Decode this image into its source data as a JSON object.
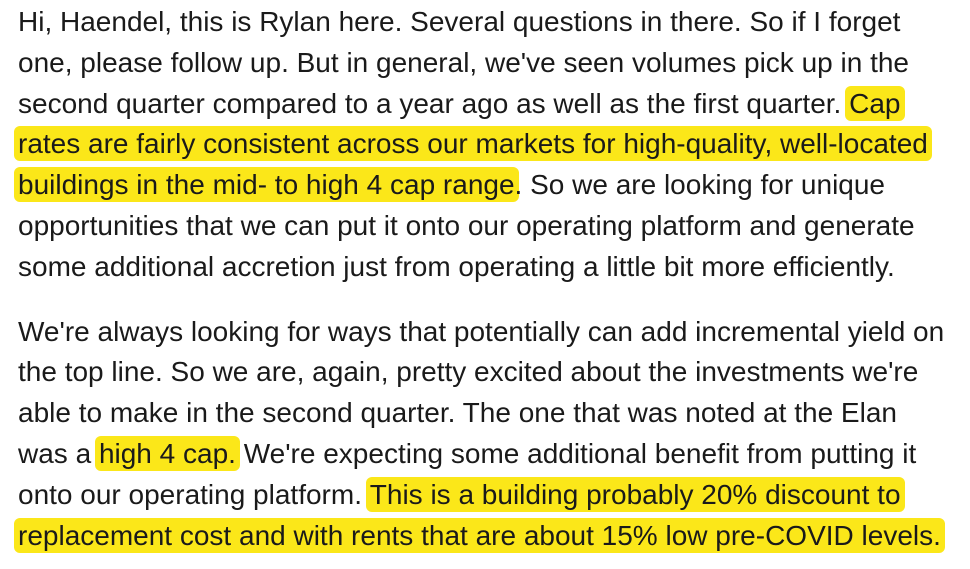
{
  "paragraphs": [
    {
      "lines": [
        [
          {
            "text": "Hi, Haendel, this is Rylan here. Several questions in there. So if I forget",
            "hl": false
          }
        ],
        [
          {
            "text": "one, please follow up. But in general, we've seen volumes pick up in the",
            "hl": false
          }
        ],
        [
          {
            "text": "second quarter compared to a year ago as well as the first quarter. ",
            "hl": false
          },
          {
            "text": "Cap",
            "hl": true
          }
        ],
        [
          {
            "text": "rates are fairly consistent across our markets for high-quality, well-located",
            "hl": true
          }
        ],
        [
          {
            "text": "buildings in the mid- to high 4 cap range",
            "hl": true
          },
          {
            "text": ". So we are looking for unique",
            "hl": false
          }
        ],
        [
          {
            "text": "opportunities that we can put it onto our operating platform and generate",
            "hl": false
          }
        ],
        [
          {
            "text": "some additional accretion just from operating a little bit more efficiently.",
            "hl": false
          }
        ]
      ]
    },
    {
      "lines": [
        [
          {
            "text": "We're always looking for ways that potentially can add incremental yield on",
            "hl": false
          }
        ],
        [
          {
            "text": "the top line. So we are, again, pretty excited about the investments we're",
            "hl": false
          }
        ],
        [
          {
            "text": "able to make in the second quarter. The one that was noted at the Elan",
            "hl": false
          }
        ],
        [
          {
            "text": "was a ",
            "hl": false
          },
          {
            "text": "high 4 cap.",
            "hl": true
          },
          {
            "text": " We're expecting some additional benefit from putting it",
            "hl": false
          }
        ],
        [
          {
            "text": "onto our operating platform. ",
            "hl": false
          },
          {
            "text": "This is a building probably 20% discount to",
            "hl": true
          }
        ],
        [
          {
            "text": "replacement cost and with rents that are about 15% low pre-COVID levels.",
            "hl": true
          }
        ]
      ]
    }
  ],
  "colors": {
    "highlight": "#fbe719",
    "text": "#1a1a1a",
    "background": "#ffffff"
  }
}
